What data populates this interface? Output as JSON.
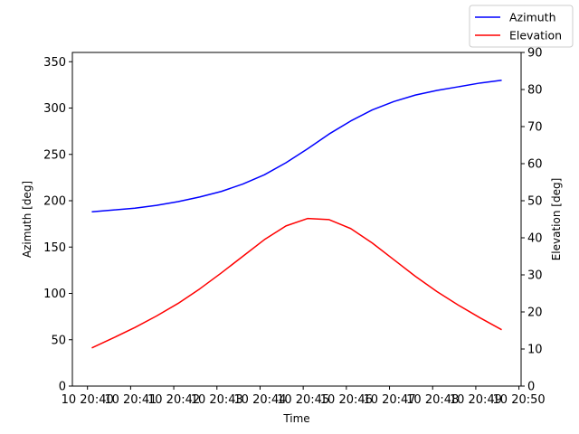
{
  "chart_data": {
    "type": "line",
    "title": "",
    "xlabel": "Time",
    "ylabel_left": "Azimuth [deg]",
    "ylabel_right": "Elevation [deg]",
    "x_ticks": [
      "10 20:40",
      "10 20:41",
      "10 20:42",
      "10 20:43",
      "10 20:44",
      "10 20:45",
      "10 20:46",
      "10 20:47",
      "10 20:48",
      "10 20:49",
      "10 20:50"
    ],
    "x_tick_minutes": [
      40,
      41,
      42,
      43,
      44,
      45,
      46,
      47,
      48,
      49,
      50
    ],
    "xlim": [
      39.65,
      50.05
    ],
    "ylim_left": [
      0,
      360
    ],
    "ylim_right": [
      0,
      90
    ],
    "y_ticks_left": [
      0,
      50,
      100,
      150,
      200,
      250,
      300,
      350
    ],
    "y_ticks_right": [
      0,
      10,
      20,
      30,
      40,
      50,
      60,
      70,
      80,
      90
    ],
    "grid": false,
    "legend": "top-right",
    "series": [
      {
        "name": "Azimuth",
        "axis": "left",
        "color": "#0000ff",
        "x": [
          40.1,
          40.6,
          41.1,
          41.6,
          42.1,
          42.6,
          43.1,
          43.6,
          44.1,
          44.6,
          45.1,
          45.6,
          46.1,
          46.6,
          47.1,
          47.6,
          48.1,
          48.6,
          49.1,
          49.6
        ],
        "values": [
          188,
          190,
          192,
          195,
          199,
          204,
          210,
          218,
          228,
          241,
          256,
          272,
          286,
          298,
          307,
          314,
          319,
          323,
          327,
          330
        ]
      },
      {
        "name": "Elevation",
        "axis": "right",
        "color": "#ff0000",
        "x": [
          40.1,
          40.6,
          41.1,
          41.6,
          42.1,
          42.6,
          43.1,
          43.6,
          44.1,
          44.6,
          45.1,
          45.6,
          46.1,
          46.6,
          47.1,
          47.6,
          48.1,
          48.6,
          49.1,
          49.6
        ],
        "values": [
          10.3,
          13.0,
          15.8,
          18.9,
          22.3,
          26.2,
          30.5,
          35.0,
          39.5,
          43.2,
          45.2,
          44.9,
          42.5,
          38.6,
          34.1,
          29.6,
          25.5,
          21.8,
          18.4,
          15.2
        ]
      }
    ]
  }
}
